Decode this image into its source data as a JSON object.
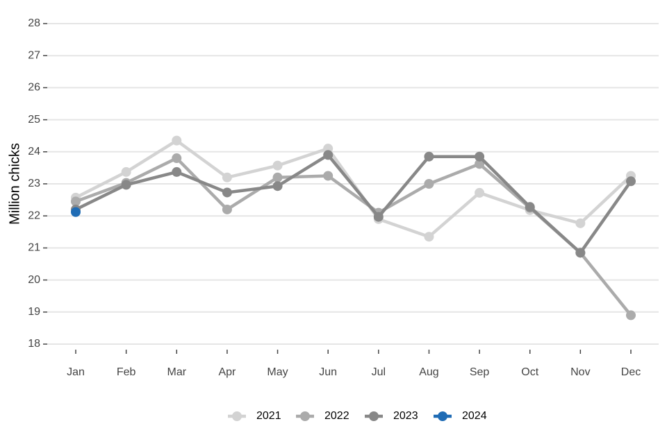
{
  "chart_data": {
    "type": "line",
    "y_label": "Million chicks",
    "categories": [
      "Jan",
      "Feb",
      "Mar",
      "Apr",
      "May",
      "Jun",
      "Jul",
      "Aug",
      "Sep",
      "Oct",
      "Nov",
      "Dec"
    ],
    "series": [
      {
        "name": "2021",
        "color": "#d3d3d3",
        "values": [
          22.57,
          23.37,
          24.35,
          23.2,
          23.57,
          24.1,
          21.9,
          21.35,
          22.72,
          22.18,
          21.77,
          23.25
        ]
      },
      {
        "name": "2022",
        "color": "#ababab",
        "values": [
          22.45,
          23.03,
          23.8,
          22.2,
          23.2,
          23.25,
          22.1,
          23.0,
          23.62,
          22.25,
          20.85,
          18.9
        ]
      },
      {
        "name": "2023",
        "color": "#888888",
        "values": [
          22.2,
          22.97,
          23.37,
          22.73,
          22.93,
          23.9,
          21.97,
          23.85,
          23.85,
          22.28,
          20.85,
          23.08
        ]
      },
      {
        "name": "2024",
        "color": "#1f6cb5",
        "values": [
          22.12,
          null,
          null,
          null,
          null,
          null,
          null,
          null,
          null,
          null,
          null,
          null
        ]
      }
    ],
    "ylim": [
      18,
      28
    ],
    "yticks": [
      18,
      19,
      20,
      21,
      22,
      23,
      24,
      25,
      26,
      27,
      28
    ],
    "grid": true,
    "legend": "bottom"
  }
}
